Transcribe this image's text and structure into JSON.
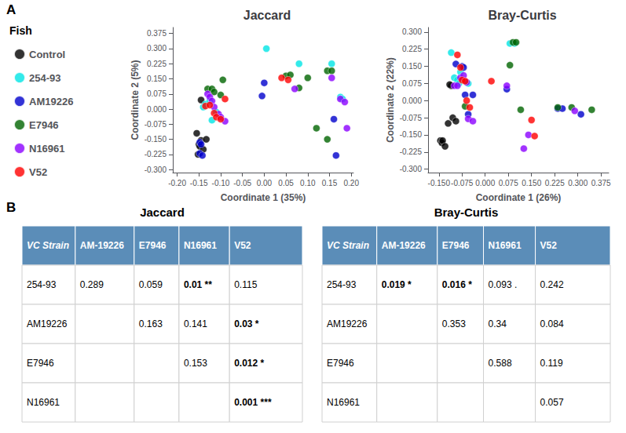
{
  "chart_data": [
    {
      "type": "scatter",
      "annotation": "A",
      "title": "Jaccard",
      "x_label": "Coordinate 1 (35%)",
      "y_label": "Coordinate 2 (5%)",
      "xlim": [
        -0.21,
        0.205
      ],
      "ylim": [
        -0.315,
        0.405
      ],
      "xticks": [
        {
          "value": -0.2,
          "label": "-0.20"
        },
        -0.15,
        {
          "value": -0.1,
          "label": "-0.10"
        },
        -0.05,
        {
          "value": 0,
          "label": "0.00"
        },
        0.05,
        {
          "value": 0.1,
          "label": "0.10"
        },
        0.15,
        {
          "value": 0.2,
          "label": "0.20"
        }
      ],
      "yticks": [
        {
          "value": -0.3,
          "label": "-0.300"
        },
        -0.225,
        {
          "value": -0.15,
          "label": "-0.150"
        },
        -0.075,
        {
          "value": 0,
          "label": "0.000"
        },
        0.075,
        {
          "value": 0.15,
          "label": "0.150"
        },
        0.225,
        {
          "value": 0.3,
          "label": "0.300"
        },
        0.375
      ],
      "grid": false,
      "legend": "left",
      "legend_title": "Fish",
      "series": [
        {
          "name": "Control",
          "color": "#000000",
          "values": [
            [
              -0.155,
              -0.12
            ],
            [
              -0.145,
              -0.155
            ],
            [
              -0.15,
              -0.175
            ],
            [
              -0.148,
              -0.185
            ],
            [
              -0.14,
              -0.2
            ],
            [
              -0.152,
              -0.225
            ],
            [
              -0.133,
              -0.15
            ],
            [
              -0.145,
              0.045
            ]
          ]
        },
        {
          "name": "254-93",
          "color": "#00E5E5",
          "values": [
            [
              -0.14,
              0.01
            ],
            [
              -0.135,
              0.025
            ],
            [
              -0.125,
              0.04
            ],
            [
              -0.12,
              -0.055
            ],
            [
              -0.11,
              -0.015
            ],
            [
              0.005,
              0.3
            ],
            [
              0.08,
              0.225
            ],
            [
              0.155,
              0.225
            ],
            [
              0.175,
              0.06
            ],
            [
              0.18,
              0.05
            ]
          ]
        },
        {
          "name": "AM19226",
          "color": "#0000CC",
          "values": [
            [
              -0.148,
              -0.165
            ],
            [
              -0.145,
              -0.175
            ],
            [
              -0.148,
              -0.22
            ],
            [
              -0.142,
              -0.23
            ],
            [
              0.0,
              0.13
            ],
            [
              -0.005,
              0.065
            ],
            [
              0.16,
              -0.05
            ],
            [
              0.165,
              -0.23
            ]
          ]
        },
        {
          "name": "E7946",
          "color": "#006400",
          "values": [
            [
              -0.13,
              0.1
            ],
            [
              -0.12,
              0.1
            ],
            [
              -0.115,
              0.085
            ],
            [
              -0.095,
              0.145
            ],
            [
              -0.1,
              0.07
            ],
            [
              0.05,
              0.165
            ],
            [
              0.06,
              0.17
            ],
            [
              0.1,
              0.155
            ],
            [
              0.08,
              0.105
            ],
            [
              0.145,
              0.19
            ],
            [
              0.155,
              0.19
            ],
            [
              0.12,
              -0.095
            ],
            [
              0.145,
              -0.15
            ]
          ]
        },
        {
          "name": "N16961",
          "color": "#8B00FF",
          "values": [
            [
              -0.13,
              0.075
            ],
            [
              -0.125,
              0.06
            ],
            [
              -0.12,
              0.04
            ],
            [
              -0.115,
              0.01
            ],
            [
              -0.105,
              -0.025
            ],
            [
              -0.1,
              -0.04
            ],
            [
              -0.09,
              -0.06
            ],
            [
              0.07,
              0.1
            ],
            [
              0.155,
              0.155
            ],
            [
              0.175,
              0.05
            ],
            [
              0.185,
              0.035
            ],
            [
              0.19,
              -0.095
            ]
          ]
        },
        {
          "name": "V52",
          "color": "#FF0000",
          "values": [
            [
              -0.135,
              0.015
            ],
            [
              -0.125,
              0.02
            ],
            [
              -0.115,
              -0.02
            ],
            [
              -0.11,
              -0.04
            ],
            [
              -0.1,
              -0.05
            ],
            [
              -0.09,
              0.05
            ],
            [
              0.04,
              0.155
            ],
            [
              0.055,
              0.145
            ]
          ]
        }
      ]
    },
    {
      "type": "scatter",
      "title": "Bray-Curtis",
      "x_label": "Coordinate 1 (26%)",
      "y_label": "Coordinate 2 (22%)",
      "xlim": [
        -0.185,
        0.4
      ],
      "ylim": [
        -0.315,
        0.32
      ],
      "xticks": [
        {
          "value": -0.15,
          "label": "-0.150"
        },
        -0.075,
        {
          "value": 0,
          "label": "0.000"
        },
        0.075,
        {
          "value": 0.15,
          "label": "0.150"
        },
        0.225,
        {
          "value": 0.3,
          "label": "0.300"
        },
        0.375
      ],
      "yticks": [
        {
          "value": -0.3,
          "label": "-0.300"
        },
        -0.225,
        {
          "value": -0.15,
          "label": "-0.150"
        },
        -0.075,
        {
          "value": 0,
          "label": "0.000"
        },
        0.075,
        {
          "value": 0.15,
          "label": "0.150"
        },
        0.225,
        {
          "value": 0.3,
          "label": "0.300"
        }
      ],
      "grid": false,
      "series": [
        {
          "name": "Control",
          "color": "#000000",
          "values": [
            [
              -0.145,
              -0.175
            ],
            [
              -0.14,
              -0.185
            ],
            [
              -0.138,
              -0.175
            ],
            [
              -0.13,
              -0.2
            ],
            [
              -0.12,
              -0.1
            ],
            [
              -0.11,
              0.065
            ],
            [
              -0.115,
              0.07
            ],
            [
              -0.105,
              -0.075
            ],
            [
              -0.095,
              -0.09
            ]
          ]
        },
        {
          "name": "254-93",
          "color": "#00E5E5",
          "values": [
            [
              -0.11,
              0.21
            ],
            [
              -0.1,
              0.1
            ],
            [
              -0.09,
              0.09
            ],
            [
              -0.085,
              0.075
            ],
            [
              -0.08,
              0.125
            ],
            [
              -0.06,
              0.08
            ],
            [
              -0.055,
              0.075
            ],
            [
              0.08,
              0.25
            ],
            [
              0.095,
              0.25
            ]
          ]
        },
        {
          "name": "AM19226",
          "color": "#0000CC",
          "values": [
            [
              -0.095,
              0.16
            ],
            [
              -0.075,
              0.15
            ],
            [
              -0.07,
              0.145
            ],
            [
              -0.065,
              0.025
            ],
            [
              -0.055,
              -0.06
            ],
            [
              -0.04,
              0.025
            ],
            [
              0.07,
              0.05
            ],
            [
              0.235,
              -0.035
            ],
            [
              0.25,
              -0.035
            ],
            [
              0.31,
              -0.06
            ]
          ]
        },
        {
          "name": "E7946",
          "color": "#006400",
          "values": [
            [
              -0.065,
              -0.025
            ],
            [
              0.08,
              0.155
            ],
            [
              0.09,
              0.255
            ],
            [
              0.1,
              0.255
            ],
            [
              0.115,
              -0.04
            ],
            [
              0.235,
              -0.03
            ],
            [
              0.28,
              -0.03
            ],
            [
              0.345,
              -0.04
            ]
          ]
        },
        {
          "name": "N16961",
          "color": "#8B00FF",
          "values": [
            [
              -0.1,
              0.065
            ],
            [
              -0.09,
              0.065
            ],
            [
              -0.08,
              0.1
            ],
            [
              -0.07,
              0.11
            ],
            [
              -0.06,
              0.08
            ],
            [
              -0.055,
              -0.08
            ],
            [
              -0.04,
              -0.09
            ],
            [
              0.07,
              0.065
            ],
            [
              0.125,
              -0.21
            ],
            [
              0.14,
              -0.15
            ],
            [
              0.29,
              -0.045
            ]
          ]
        },
        {
          "name": "V52",
          "color": "#FF0000",
          "values": [
            [
              -0.09,
              0.2
            ],
            [
              -0.08,
              0.145
            ],
            [
              -0.075,
              0.09
            ],
            [
              -0.065,
              0.085
            ],
            [
              -0.06,
              0.0
            ],
            [
              -0.05,
              -0.03
            ],
            [
              0.02,
              0.085
            ],
            [
              0.15,
              -0.085
            ],
            [
              0.16,
              -0.155
            ]
          ]
        }
      ]
    },
    {
      "type": "table",
      "annotation": "B",
      "title": "Jaccard",
      "color": "#5B8DB8",
      "columns": [
        "VC Strain",
        "AM-19226",
        "E7946",
        "N16961",
        "V52"
      ],
      "rows": [
        [
          "254-93",
          "0.289",
          "0.059",
          "0.01 **",
          "0.115"
        ],
        [
          "AM19226",
          null,
          "0.163",
          "0.141",
          "0.03 *"
        ],
        [
          "E7946",
          null,
          null,
          "0.153",
          "0.012 *"
        ],
        [
          "N16961",
          null,
          null,
          null,
          "0.001 ***"
        ]
      ]
    },
    {
      "type": "table",
      "title": "Bray-Curtis",
      "color": "#5B8DB8",
      "columns": [
        "VC Strain",
        "AM-19226",
        "E7946",
        "N16961",
        "V52"
      ],
      "rows": [
        [
          "254-93",
          "0.019 *",
          "0.016 *",
          "0.093 .",
          "0.242"
        ],
        [
          "AM19226",
          null,
          "0.353",
          "0.34",
          "0.084"
        ],
        [
          "E7946",
          null,
          null,
          "0.588",
          "0.119"
        ],
        [
          "N16961",
          null,
          null,
          null,
          "0.057"
        ]
      ]
    }
  ]
}
